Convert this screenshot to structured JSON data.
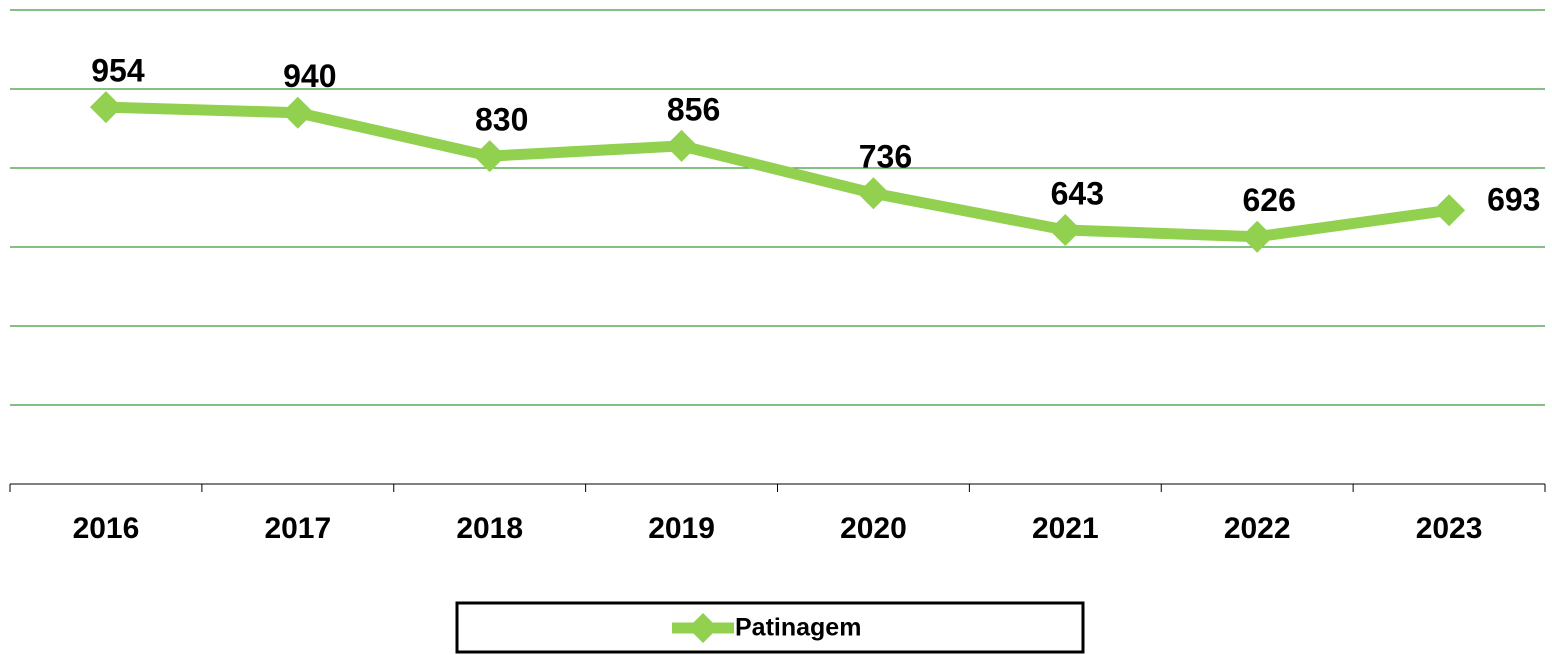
{
  "chart_data": {
    "type": "line",
    "categories": [
      "2016",
      "2017",
      "2018",
      "2019",
      "2020",
      "2021",
      "2022",
      "2023"
    ],
    "series": [
      {
        "name": "Patinagem",
        "color": "#92d050",
        "values": [
          954,
          940,
          830,
          856,
          736,
          643,
          626,
          693
        ]
      }
    ],
    "ylim": [
      0,
      1200
    ],
    "yticks": [
      0,
      200,
      400,
      600,
      800,
      1000,
      1200
    ],
    "grid": true,
    "grid_color": "#3a9a3a",
    "legend": "bottom"
  }
}
